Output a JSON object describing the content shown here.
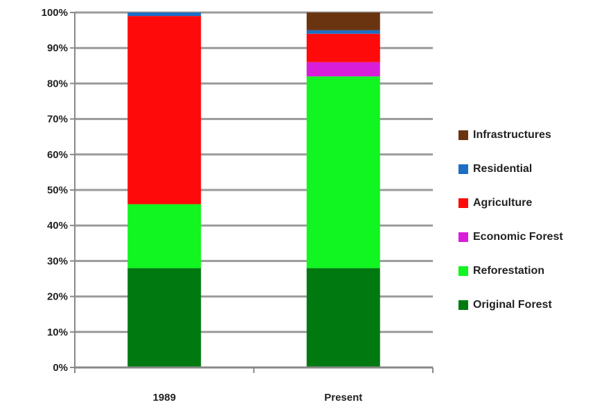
{
  "chart_data": {
    "type": "bar",
    "stacked": true,
    "percent": true,
    "categories": [
      "1989",
      "Present"
    ],
    "series": [
      {
        "name": "Original Forest",
        "color": "#007a10",
        "values": [
          28,
          28
        ]
      },
      {
        "name": "Reforestation",
        "color": "#11f520",
        "values": [
          18,
          54
        ]
      },
      {
        "name": "Economic Forest",
        "color": "#d81ed8",
        "values": [
          0,
          4
        ]
      },
      {
        "name": "Agriculture",
        "color": "#ff0a0a",
        "values": [
          53,
          8
        ]
      },
      {
        "name": "Residential",
        "color": "#1d6ec4",
        "values": [
          1,
          1
        ]
      },
      {
        "name": "Infrastructures",
        "color": "#6b3410",
        "values": [
          0,
          5
        ]
      }
    ],
    "y_ticks": [
      "0%",
      "10%",
      "20%",
      "30%",
      "40%",
      "50%",
      "60%",
      "70%",
      "80%",
      "90%",
      "100%"
    ],
    "ylim": [
      0,
      100
    ],
    "grid": true,
    "legend_position": "right",
    "legend_order": [
      "Infrastructures",
      "Residential",
      "Agriculture",
      "Economic Forest",
      "Reforestation",
      "Original Forest"
    ]
  }
}
